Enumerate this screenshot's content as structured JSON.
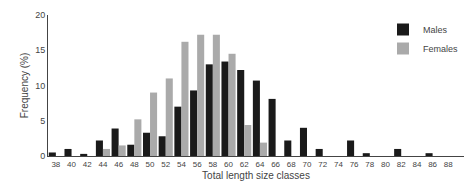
{
  "chart_data": {
    "type": "bar",
    "x": [
      38,
      40,
      42,
      44,
      46,
      48,
      50,
      52,
      54,
      56,
      58,
      60,
      62,
      64,
      66,
      68,
      70,
      72,
      74,
      76,
      78,
      80,
      82,
      84,
      86,
      88
    ],
    "series": [
      {
        "name": "Males",
        "color": "#1a1a1a",
        "values": [
          0.5,
          1.0,
          0.3,
          2.2,
          3.9,
          1.6,
          3.3,
          2.8,
          7.0,
          9.3,
          13.0,
          13.4,
          12.2,
          10.7,
          8.1,
          2.2,
          4.0,
          1.0,
          0.0,
          2.2,
          0.4,
          0.0,
          1.0,
          0.0,
          0.4,
          0.0
        ]
      },
      {
        "name": "Females",
        "color": "#aaaaaa",
        "values": [
          0.0,
          0.0,
          0.0,
          1.0,
          1.5,
          5.2,
          9.0,
          11.0,
          16.2,
          17.2,
          17.2,
          14.5,
          4.4,
          1.9,
          0.0,
          0.0,
          0.0,
          0.0,
          0.0,
          0.0,
          0.0,
          0.0,
          0.0,
          0.0,
          0.0,
          0.0
        ]
      }
    ],
    "xlabel": "Total length size classes",
    "ylabel": "Frequency (%)",
    "xlim": [
      37,
      90
    ],
    "xticks": [
      38,
      40,
      42,
      44,
      46,
      48,
      50,
      52,
      54,
      56,
      58,
      60,
      62,
      64,
      66,
      68,
      70,
      72,
      74,
      76,
      78,
      80,
      82,
      84,
      86,
      88
    ],
    "ylim": [
      0,
      20
    ],
    "yticks": [
      0,
      5,
      10,
      15,
      20
    ],
    "grid": false,
    "legend": "upper right"
  }
}
